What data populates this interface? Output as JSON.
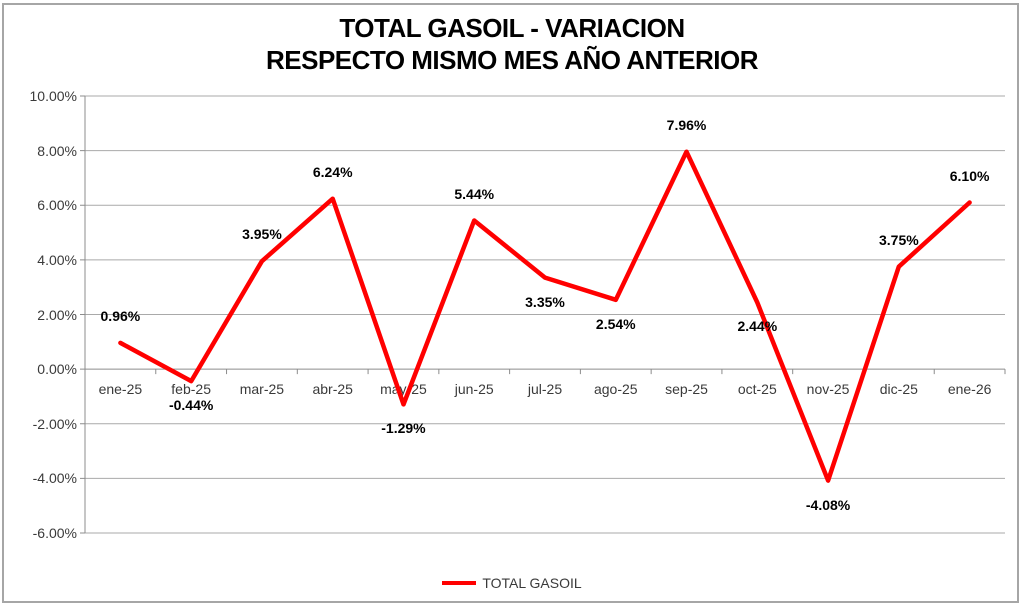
{
  "chart_data": {
    "type": "line",
    "title": "TOTAL GASOIL - VARIACION RESPECTO MISMO MES AÑO ANTERIOR",
    "title_line1": "TOTAL GASOIL - VARIACION",
    "title_line2": "RESPECTO MISMO MES AÑO ANTERIOR",
    "categories": [
      "ene-25",
      "feb-25",
      "mar-25",
      "abr-25",
      "may-25",
      "jun-25",
      "jul-25",
      "ago-25",
      "sep-25",
      "oct-25",
      "nov-25",
      "dic-25",
      "ene-26"
    ],
    "series": [
      {
        "name": "TOTAL GASOIL",
        "values": [
          0.96,
          -0.44,
          3.95,
          6.24,
          -1.29,
          5.44,
          3.35,
          2.54,
          7.96,
          2.44,
          -4.08,
          3.75,
          6.1
        ],
        "color": "#ff0000"
      }
    ],
    "data_labels": [
      "0.96%",
      "-0.44%",
      "3.95%",
      "6.24%",
      "-1.29%",
      "5.44%",
      "3.35%",
      "2.54%",
      "7.96%",
      "2.44%",
      "-4.08%",
      "3.75%",
      "6.10%"
    ],
    "data_label_positions": [
      "above",
      "below",
      "above",
      "above",
      "below",
      "above",
      "below",
      "below",
      "above",
      "below",
      "below",
      "above",
      "above"
    ],
    "y_axis": {
      "min": -6,
      "max": 10,
      "step": 2,
      "tick_labels": [
        "10.00%",
        "8.00%",
        "6.00%",
        "4.00%",
        "2.00%",
        "0.00%",
        "-2.00%",
        "-4.00%",
        "-6.00%"
      ]
    },
    "xlabel": "",
    "ylabel": "",
    "grid": true,
    "legend": {
      "position": "bottom",
      "entries": [
        "TOTAL GASOIL"
      ]
    },
    "colors": {
      "series_line": "#ff0000",
      "gridline": "#a9a9a9",
      "axis_line": "#8c8c8c",
      "axis_text": "#3a3a3a",
      "data_label_text": "#000000",
      "title_text": "#000000",
      "chart_border": "#a6a6a6",
      "background": "#ffffff"
    }
  }
}
